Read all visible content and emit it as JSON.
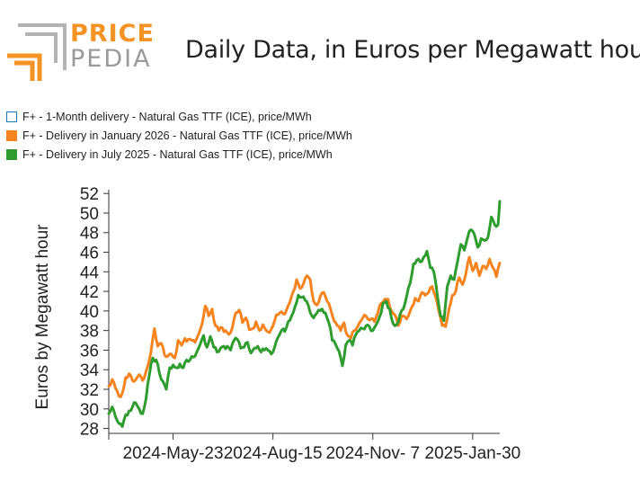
{
  "logo": {
    "top_word": "PRICE",
    "bottom_word": "PEDIA",
    "colors": {
      "orange": "#f39323",
      "gray": "#b3b3b3"
    }
  },
  "chart_data": {
    "type": "line",
    "title": "Daily Data, in Euros per Megawatt hour",
    "xlabel": "",
    "ylabel": "Euros by Megawatt hour",
    "ylim": [
      27.5,
      52.2
    ],
    "yticks": [
      28,
      30,
      32,
      34,
      36,
      38,
      40,
      42,
      44,
      46,
      48,
      50,
      52
    ],
    "xticks": [
      {
        "label": "2024-May-23",
        "index": 38
      },
      {
        "label": "2024-Aug-15",
        "index": 97
      },
      {
        "label": "2024-Nov- 7",
        "index": 156
      },
      {
        "label": "2025-Jan-30",
        "index": 215
      }
    ],
    "x_points": 232,
    "series": [
      {
        "name": "F+ - 1-Month delivery - Natural Gas TTF (ICE), price/MWh",
        "color": "#1f77b4",
        "style": "outline",
        "values": []
      },
      {
        "name": "F+ - Delivery in January 2026 - Natural Gas TTF (ICE), price/MWh",
        "color": "#f5841f",
        "style": "filled",
        "anchors": [
          [
            0,
            32.3
          ],
          [
            2,
            33.0
          ],
          [
            4,
            32.1
          ],
          [
            6,
            31.3
          ],
          [
            8,
            31.6
          ],
          [
            10,
            33.2
          ],
          [
            12,
            33.6
          ],
          [
            14,
            32.9
          ],
          [
            16,
            33.0
          ],
          [
            18,
            33.5
          ],
          [
            20,
            32.9
          ],
          [
            22,
            33.8
          ],
          [
            24,
            35.0
          ],
          [
            27,
            38.2
          ],
          [
            29,
            36.4
          ],
          [
            31,
            36.7
          ],
          [
            33,
            35.5
          ],
          [
            35,
            35.4
          ],
          [
            37,
            35.6
          ],
          [
            39,
            35.2
          ],
          [
            41,
            37.0
          ],
          [
            43,
            36.5
          ],
          [
            45,
            37.2
          ],
          [
            47,
            37.1
          ],
          [
            49,
            37.0
          ],
          [
            51,
            36.8
          ],
          [
            53,
            37.6
          ],
          [
            55,
            38.6
          ],
          [
            57,
            40.5
          ],
          [
            59,
            39.5
          ],
          [
            61,
            40.2
          ],
          [
            63,
            38.5
          ],
          [
            65,
            38.0
          ],
          [
            67,
            38.3
          ],
          [
            69,
            38.0
          ],
          [
            71,
            37.6
          ],
          [
            73,
            38.3
          ],
          [
            75,
            39.8
          ],
          [
            77,
            40.1
          ],
          [
            79,
            38.8
          ],
          [
            81,
            39.3
          ],
          [
            83,
            38.1
          ],
          [
            85,
            38.2
          ],
          [
            87,
            38.9
          ],
          [
            89,
            38.0
          ],
          [
            91,
            38.6
          ],
          [
            93,
            38.0
          ],
          [
            95,
            37.8
          ],
          [
            97,
            38.5
          ],
          [
            99,
            39.6
          ],
          [
            101,
            39.8
          ],
          [
            103,
            39.7
          ],
          [
            105,
            40.1
          ],
          [
            107,
            40.9
          ],
          [
            109,
            42.0
          ],
          [
            111,
            43.2
          ],
          [
            113,
            42.3
          ],
          [
            115,
            42.8
          ],
          [
            117,
            43.6
          ],
          [
            119,
            43.2
          ],
          [
            121,
            41.0
          ],
          [
            123,
            40.6
          ],
          [
            125,
            41.5
          ],
          [
            127,
            41.9
          ],
          [
            129,
            41.0
          ],
          [
            131,
            40.2
          ],
          [
            133,
            39.0
          ],
          [
            135,
            38.5
          ],
          [
            137,
            38.0
          ],
          [
            139,
            38.8
          ],
          [
            141,
            37.5
          ],
          [
            143,
            37.2
          ],
          [
            145,
            38.0
          ],
          [
            147,
            38.4
          ],
          [
            149,
            39.0
          ],
          [
            151,
            39.6
          ],
          [
            153,
            39.2
          ],
          [
            155,
            39.2
          ],
          [
            157,
            38.9
          ],
          [
            159,
            39.8
          ],
          [
            161,
            40.8
          ],
          [
            163,
            41.2
          ],
          [
            165,
            41.2
          ],
          [
            167,
            40.0
          ],
          [
            169,
            39.6
          ],
          [
            171,
            38.5
          ],
          [
            173,
            39.5
          ],
          [
            175,
            39.4
          ],
          [
            177,
            39.5
          ],
          [
            179,
            40.4
          ],
          [
            181,
            41.3
          ],
          [
            183,
            41.0
          ],
          [
            185,
            41.9
          ],
          [
            187,
            41.6
          ],
          [
            189,
            41.9
          ],
          [
            191,
            42.5
          ],
          [
            193,
            41.5
          ],
          [
            195,
            40.0
          ],
          [
            197,
            38.5
          ],
          [
            199,
            38.4
          ],
          [
            201,
            40.2
          ],
          [
            203,
            41.6
          ],
          [
            205,
            42.0
          ],
          [
            207,
            43.4
          ],
          [
            209,
            42.7
          ],
          [
            211,
            43.8
          ],
          [
            213,
            45.5
          ],
          [
            215,
            44.1
          ],
          [
            217,
            44.9
          ],
          [
            219,
            43.6
          ],
          [
            221,
            44.6
          ],
          [
            223,
            44.3
          ],
          [
            225,
            45.3
          ],
          [
            227,
            44.4
          ],
          [
            229,
            43.5
          ],
          [
            231,
            44.9
          ]
        ]
      },
      {
        "name": "F+ - Delivery in July 2025 - Natural Gas TTF (ICE), price/MWh",
        "color": "#2e9c2e",
        "style": "filled",
        "anchors": [
          [
            0,
            29.5
          ],
          [
            2,
            30.2
          ],
          [
            4,
            29.2
          ],
          [
            6,
            28.5
          ],
          [
            8,
            28.2
          ],
          [
            10,
            29.4
          ],
          [
            12,
            29.8
          ],
          [
            14,
            30.2
          ],
          [
            16,
            30.6
          ],
          [
            18,
            30.0
          ],
          [
            20,
            29.5
          ],
          [
            22,
            31.0
          ],
          [
            24,
            33.5
          ],
          [
            26,
            35.2
          ],
          [
            28,
            35.0
          ],
          [
            30,
            33.6
          ],
          [
            32,
            32.8
          ],
          [
            34,
            32.0
          ],
          [
            36,
            34.2
          ],
          [
            38,
            34.5
          ],
          [
            40,
            34.2
          ],
          [
            42,
            34.6
          ],
          [
            44,
            34.2
          ],
          [
            46,
            35.0
          ],
          [
            48,
            35.0
          ],
          [
            50,
            35.3
          ],
          [
            52,
            35.8
          ],
          [
            54,
            36.6
          ],
          [
            56,
            37.5
          ],
          [
            58,
            36.3
          ],
          [
            60,
            37.4
          ],
          [
            62,
            36.3
          ],
          [
            64,
            35.8
          ],
          [
            66,
            36.2
          ],
          [
            68,
            36.4
          ],
          [
            70,
            36.4
          ],
          [
            72,
            36.0
          ],
          [
            74,
            37.0
          ],
          [
            76,
            37.1
          ],
          [
            78,
            36.2
          ],
          [
            80,
            36.3
          ],
          [
            82,
            36.8
          ],
          [
            84,
            35.7
          ],
          [
            86,
            36.2
          ],
          [
            88,
            36.4
          ],
          [
            90,
            35.8
          ],
          [
            92,
            36.0
          ],
          [
            94,
            36.0
          ],
          [
            96,
            35.6
          ],
          [
            98,
            36.3
          ],
          [
            100,
            37.3
          ],
          [
            102,
            38.0
          ],
          [
            104,
            37.9
          ],
          [
            106,
            38.9
          ],
          [
            108,
            39.5
          ],
          [
            110,
            40.4
          ],
          [
            112,
            41.6
          ],
          [
            114,
            41.4
          ],
          [
            116,
            41.1
          ],
          [
            118,
            40.5
          ],
          [
            120,
            39.5
          ],
          [
            122,
            39.6
          ],
          [
            124,
            40.1
          ],
          [
            126,
            40.2
          ],
          [
            128,
            39.8
          ],
          [
            130,
            38.8
          ],
          [
            132,
            37.0
          ],
          [
            134,
            36.6
          ],
          [
            136,
            35.9
          ],
          [
            138,
            34.4
          ],
          [
            140,
            36.5
          ],
          [
            142,
            37.0
          ],
          [
            144,
            36.5
          ],
          [
            146,
            37.6
          ],
          [
            148,
            38.0
          ],
          [
            150,
            38.2
          ],
          [
            152,
            38.5
          ],
          [
            154,
            38.4
          ],
          [
            156,
            38.0
          ],
          [
            158,
            38.6
          ],
          [
            160,
            39.4
          ],
          [
            162,
            40.8
          ],
          [
            164,
            41.0
          ],
          [
            166,
            40.2
          ],
          [
            168,
            38.7
          ],
          [
            170,
            38.6
          ],
          [
            172,
            39.6
          ],
          [
            174,
            40.2
          ],
          [
            176,
            41.5
          ],
          [
            178,
            42.8
          ],
          [
            180,
            44.8
          ],
          [
            182,
            45.2
          ],
          [
            184,
            45.0
          ],
          [
            186,
            45.5
          ],
          [
            188,
            46.1
          ],
          [
            190,
            44.4
          ],
          [
            192,
            44.0
          ],
          [
            194,
            41.8
          ],
          [
            196,
            39.5
          ],
          [
            198,
            39.0
          ],
          [
            200,
            42.5
          ],
          [
            202,
            43.6
          ],
          [
            204,
            43.2
          ],
          [
            206,
            45.0
          ],
          [
            208,
            46.8
          ],
          [
            210,
            46.2
          ],
          [
            212,
            47.5
          ],
          [
            214,
            48.3
          ],
          [
            216,
            47.8
          ],
          [
            218,
            46.5
          ],
          [
            220,
            47.4
          ],
          [
            222,
            47.2
          ],
          [
            224,
            47.5
          ],
          [
            226,
            49.6
          ],
          [
            228,
            48.8
          ],
          [
            230,
            48.8
          ],
          [
            231,
            51.2
          ]
        ]
      }
    ]
  }
}
